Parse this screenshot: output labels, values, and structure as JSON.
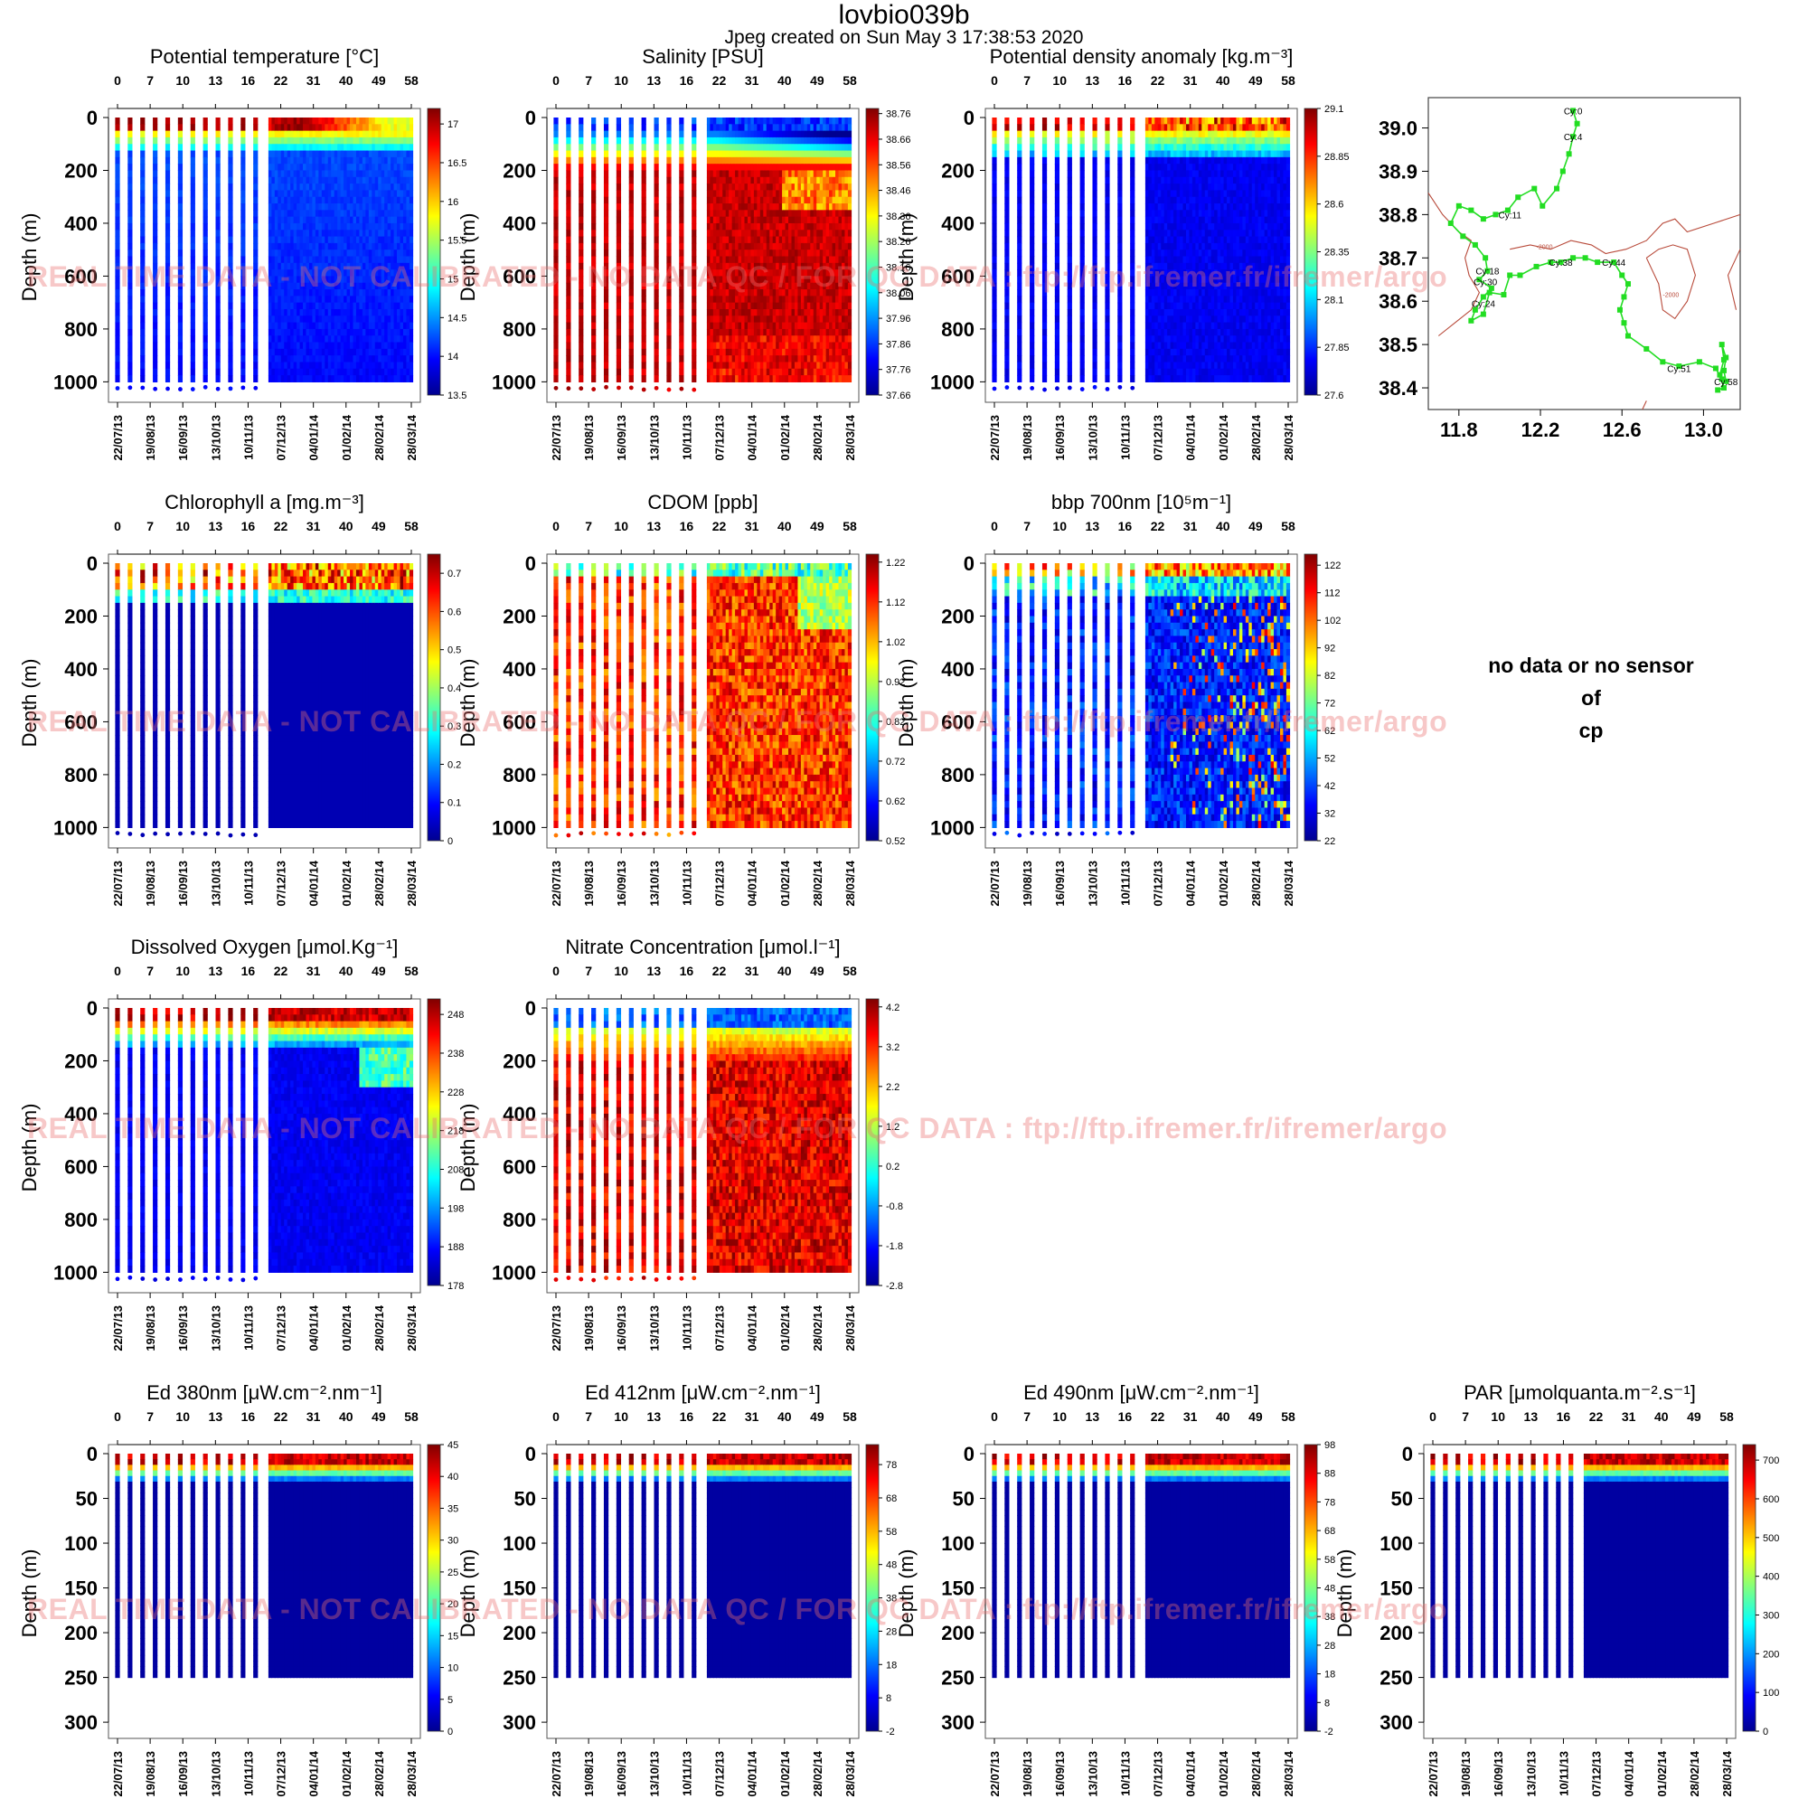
{
  "header": {
    "title": "lovbio039b",
    "subtitle": "Jpeg created on  Sun May  3 17:38:53 2020"
  },
  "watermark": "REAL TIME DATA - NOT CALIBRATED - NO DATA QC / FOR QC DATA : ftp://ftp.ifremer.fr/ifremer/argo",
  "no_data_panel": {
    "lines": [
      "no data or no sensor",
      "of",
      "cp"
    ]
  },
  "common": {
    "ylabel": "Depth (m)",
    "cycle_ticks": [
      "0",
      "7",
      "10",
      "13",
      "16",
      "22",
      "31",
      "40",
      "49",
      "58"
    ],
    "date_ticks": [
      "22/07/13",
      "19/08/13",
      "16/09/13",
      "13/10/13",
      "10/11/13",
      "07/12/13",
      "04/01/14",
      "01/02/14",
      "28/02/14",
      "28/03/14"
    ]
  },
  "colors": {
    "jet": [
      "#00008f",
      "#0000ff",
      "#0080ff",
      "#00ffff",
      "#80ff80",
      "#ffff00",
      "#ff8000",
      "#ff0000",
      "#800000"
    ],
    "track_line": "#22dd22",
    "bathymetry": "#b84a3a"
  },
  "chart_data": [
    {
      "type": "heatmap",
      "title": "Potential temperature [°C]",
      "ylabel": "Depth (m)",
      "yticks": [
        "0",
        "200",
        "400",
        "600",
        "800",
        "1000"
      ],
      "ylim": [
        0,
        1050
      ],
      "colorbar": {
        "ticks": [
          "17",
          "16.5",
          "16",
          "15.5",
          "15",
          "14.5",
          "14",
          "13.5"
        ],
        "range": [
          13.5,
          17.2
        ]
      },
      "pattern": "temperature"
    },
    {
      "type": "heatmap",
      "title": "Salinity [PSU]",
      "ylabel": "Depth (m)",
      "yticks": [
        "0",
        "200",
        "400",
        "600",
        "800",
        "1000"
      ],
      "ylim": [
        0,
        1050
      ],
      "colorbar": {
        "ticks": [
          "38.76",
          "38.66",
          "38.56",
          "38.46",
          "38.36",
          "38.26",
          "38.16",
          "38.06",
          "37.96",
          "37.86",
          "37.76",
          "37.66"
        ],
        "range": [
          37.66,
          38.78
        ]
      },
      "pattern": "salinity"
    },
    {
      "type": "heatmap",
      "title": "Potential density anomaly [kg.m⁻³]",
      "ylabel": "Depth (m)",
      "yticks": [
        "0",
        "200",
        "400",
        "600",
        "800",
        "1000"
      ],
      "ylim": [
        0,
        1050
      ],
      "colorbar": {
        "ticks": [
          "29.1",
          "28.85",
          "28.6",
          "28.35",
          "28.1",
          "27.85",
          "27.6"
        ],
        "range": [
          27.6,
          29.1
        ]
      },
      "pattern": "density"
    },
    {
      "type": "scatter",
      "title": "",
      "xticks": [
        "11.8",
        "12.2",
        "12.6",
        "13.0"
      ],
      "yticks": [
        "39.0",
        "38.9",
        "38.8",
        "38.7",
        "38.6",
        "38.5",
        "38.4"
      ],
      "xlim": [
        11.65,
        13.18
      ],
      "ylim": [
        38.35,
        39.07
      ],
      "contour_label": "-2000",
      "labels": [
        {
          "text": "Cy:0",
          "x": 12.36,
          "y": 39.04
        },
        {
          "text": "Cy:4",
          "x": 12.36,
          "y": 38.98
        },
        {
          "text": "Cy:11",
          "x": 12.05,
          "y": 38.8
        },
        {
          "text": "Cy:18",
          "x": 11.94,
          "y": 38.67
        },
        {
          "text": "Cy:30",
          "x": 11.93,
          "y": 38.645
        },
        {
          "text": "Cy:24",
          "x": 11.92,
          "y": 38.595
        },
        {
          "text": "Cy:38",
          "x": 12.3,
          "y": 38.69
        },
        {
          "text": "Cy:44",
          "x": 12.56,
          "y": 38.69
        },
        {
          "text": "Cy:51",
          "x": 12.88,
          "y": 38.445
        },
        {
          "text": "Cy:58",
          "x": 13.11,
          "y": 38.415
        }
      ],
      "track": [
        {
          "x": 12.36,
          "y": 39.04
        },
        {
          "x": 12.38,
          "y": 39.01
        },
        {
          "x": 12.36,
          "y": 38.98
        },
        {
          "x": 12.34,
          "y": 38.94
        },
        {
          "x": 12.31,
          "y": 38.9
        },
        {
          "x": 12.28,
          "y": 38.86
        },
        {
          "x": 12.21,
          "y": 38.82
        },
        {
          "x": 12.17,
          "y": 38.86
        },
        {
          "x": 12.09,
          "y": 38.84
        },
        {
          "x": 12.04,
          "y": 38.81
        },
        {
          "x": 11.98,
          "y": 38.8
        },
        {
          "x": 11.92,
          "y": 38.79
        },
        {
          "x": 11.86,
          "y": 38.81
        },
        {
          "x": 11.8,
          "y": 38.82
        },
        {
          "x": 11.76,
          "y": 38.78
        },
        {
          "x": 11.82,
          "y": 38.75
        },
        {
          "x": 11.88,
          "y": 38.73
        },
        {
          "x": 11.93,
          "y": 38.7
        },
        {
          "x": 11.94,
          "y": 38.67
        },
        {
          "x": 11.9,
          "y": 38.65
        },
        {
          "x": 11.96,
          "y": 38.63
        },
        {
          "x": 11.92,
          "y": 38.61
        },
        {
          "x": 11.88,
          "y": 38.58
        },
        {
          "x": 11.86,
          "y": 38.555
        },
        {
          "x": 11.92,
          "y": 38.57
        },
        {
          "x": 11.95,
          "y": 38.62
        },
        {
          "x": 12.02,
          "y": 38.615
        },
        {
          "x": 12.05,
          "y": 38.66
        },
        {
          "x": 12.1,
          "y": 38.66
        },
        {
          "x": 12.18,
          "y": 38.68
        },
        {
          "x": 12.25,
          "y": 38.69
        },
        {
          "x": 12.3,
          "y": 38.69
        },
        {
          "x": 12.36,
          "y": 38.7
        },
        {
          "x": 12.42,
          "y": 38.7
        },
        {
          "x": 12.48,
          "y": 38.69
        },
        {
          "x": 12.56,
          "y": 38.69
        },
        {
          "x": 12.6,
          "y": 38.66
        },
        {
          "x": 12.63,
          "y": 38.64
        },
        {
          "x": 12.61,
          "y": 38.61
        },
        {
          "x": 12.59,
          "y": 38.58
        },
        {
          "x": 12.61,
          "y": 38.55
        },
        {
          "x": 12.63,
          "y": 38.52
        },
        {
          "x": 12.72,
          "y": 38.49
        },
        {
          "x": 12.8,
          "y": 38.46
        },
        {
          "x": 12.88,
          "y": 38.45
        },
        {
          "x": 12.98,
          "y": 38.46
        },
        {
          "x": 13.06,
          "y": 38.445
        },
        {
          "x": 13.09,
          "y": 38.42
        },
        {
          "x": 13.11,
          "y": 38.415
        },
        {
          "x": 13.1,
          "y": 38.44
        },
        {
          "x": 13.11,
          "y": 38.47
        },
        {
          "x": 13.09,
          "y": 38.5
        },
        {
          "x": 13.1,
          "y": 38.465
        },
        {
          "x": 13.08,
          "y": 38.43
        },
        {
          "x": 13.1,
          "y": 38.4
        },
        {
          "x": 13.07,
          "y": 38.395
        }
      ]
    },
    {
      "type": "heatmap",
      "title": "Chlorophyll a [mg.m⁻³]",
      "ylabel": "Depth (m)",
      "yticks": [
        "0",
        "200",
        "400",
        "600",
        "800",
        "1000"
      ],
      "ylim": [
        0,
        1050
      ],
      "colorbar": {
        "ticks": [
          "0.7",
          "0.6",
          "0.5",
          "0.4",
          "0.3",
          "0.2",
          "0.1",
          "0"
        ],
        "range": [
          0,
          0.75
        ]
      },
      "pattern": "chla"
    },
    {
      "type": "heatmap",
      "title": "CDOM  [ppb]",
      "ylabel": "Depth (m)",
      "yticks": [
        "0",
        "200",
        "400",
        "600",
        "800",
        "1000"
      ],
      "ylim": [
        0,
        1050
      ],
      "colorbar": {
        "ticks": [
          "1.22",
          "1.12",
          "1.02",
          "0.92",
          "0.82",
          "0.72",
          "0.62",
          "0.52"
        ],
        "range": [
          0.52,
          1.24
        ]
      },
      "pattern": "cdom"
    },
    {
      "type": "heatmap",
      "title": "bbp 700nm [10⁵m⁻¹]",
      "ylabel": "Depth (m)",
      "yticks": [
        "0",
        "200",
        "400",
        "600",
        "800",
        "1000"
      ],
      "ylim": [
        0,
        1050
      ],
      "colorbar": {
        "ticks": [
          "122",
          "112",
          "102",
          "92",
          "82",
          "72",
          "62",
          "52",
          "42",
          "32",
          "22"
        ],
        "range": [
          22,
          126
        ]
      },
      "pattern": "bbp"
    },
    {
      "type": "heatmap",
      "title": "Dissolved Oxygen [μmol.Kg⁻¹]",
      "ylabel": "Depth (m)",
      "yticks": [
        "0",
        "200",
        "400",
        "600",
        "800",
        "1000"
      ],
      "ylim": [
        0,
        1050
      ],
      "colorbar": {
        "ticks": [
          "248",
          "238",
          "228",
          "218",
          "208",
          "198",
          "188",
          "178"
        ],
        "range": [
          178,
          252
        ]
      },
      "pattern": "oxygen"
    },
    {
      "type": "heatmap",
      "title": "Nitrate Concentration [μmol.l⁻¹]",
      "ylabel": "Depth (m)",
      "yticks": [
        "0",
        "200",
        "400",
        "600",
        "800",
        "1000"
      ],
      "ylim": [
        0,
        1050
      ],
      "colorbar": {
        "ticks": [
          "4.2",
          "3.2",
          "2.2",
          "1.2",
          "0.2",
          "-0.8",
          "-1.8",
          "-2.8"
        ],
        "range": [
          -2.8,
          4.4
        ]
      },
      "pattern": "nitrate"
    },
    {
      "type": "heatmap",
      "title": "Ed 380nm [μW.cm⁻².nm⁻¹]",
      "ylabel": "Depth (m)",
      "yticks": [
        "0",
        "50",
        "100",
        "150",
        "200",
        "250",
        "300"
      ],
      "ylim": [
        0,
        310
      ],
      "colorbar": {
        "ticks": [
          "45",
          "40",
          "35",
          "30",
          "25",
          "20",
          "15",
          "10",
          "5",
          "0"
        ],
        "range": [
          0,
          45
        ]
      },
      "pattern": "light"
    },
    {
      "type": "heatmap",
      "title": "Ed 412nm [μW.cm⁻².nm⁻¹]",
      "ylabel": "Depth (m)",
      "yticks": [
        "0",
        "50",
        "100",
        "150",
        "200",
        "250",
        "300"
      ],
      "ylim": [
        0,
        310
      ],
      "colorbar": {
        "ticks": [
          "78",
          "68",
          "58",
          "48",
          "38",
          "28",
          "18",
          "8",
          "-2"
        ],
        "range": [
          -2,
          84
        ]
      },
      "pattern": "light"
    },
    {
      "type": "heatmap",
      "title": "Ed 490nm [μW.cm⁻².nm⁻¹]",
      "ylabel": "Depth (m)",
      "yticks": [
        "0",
        "50",
        "100",
        "150",
        "200",
        "250",
        "300"
      ],
      "ylim": [
        0,
        310
      ],
      "colorbar": {
        "ticks": [
          "98",
          "88",
          "78",
          "68",
          "58",
          "48",
          "38",
          "28",
          "18",
          "8",
          "-2"
        ],
        "range": [
          -2,
          98
        ]
      },
      "pattern": "light"
    },
    {
      "type": "heatmap",
      "title": "PAR [μmolquanta.m⁻².s⁻¹]",
      "ylabel": "Depth (m)",
      "yticks": [
        "0",
        "50",
        "100",
        "150",
        "200",
        "250",
        "300"
      ],
      "ylim": [
        0,
        310
      ],
      "colorbar": {
        "ticks": [
          "700",
          "600",
          "500",
          "400",
          "300",
          "200",
          "100",
          "0"
        ],
        "range": [
          0,
          740
        ]
      },
      "pattern": "light"
    }
  ]
}
